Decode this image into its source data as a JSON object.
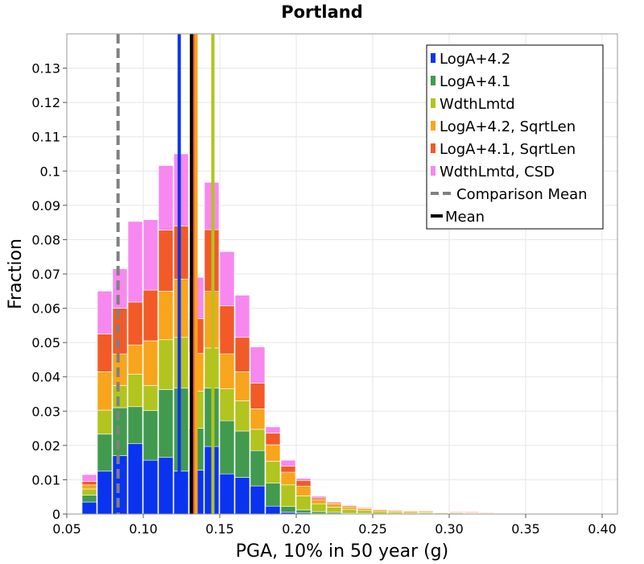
{
  "chart_data": {
    "type": "bar",
    "stacked": true,
    "title": "Portland",
    "xlabel": "PGA, 10% in 50 year (g)",
    "ylabel": "Fraction",
    "xlim": [
      0.05,
      0.41
    ],
    "ylim": [
      0,
      0.14
    ],
    "bin_width": 0.01,
    "grid": true,
    "legend_position": "top-right",
    "xticks": [
      "0.05",
      "0.10",
      "0.15",
      "0.20",
      "0.25",
      "0.30",
      "0.35",
      "0.40"
    ],
    "xtick_values": [
      0.05,
      0.1,
      0.15,
      0.2,
      0.25,
      0.3,
      0.35,
      0.4
    ],
    "yticks": [
      "0",
      "0.01",
      "0.02",
      "0.03",
      "0.04",
      "0.05",
      "0.06",
      "0.07",
      "0.08",
      "0.09",
      "0.1",
      "0.11",
      "0.12",
      "0.13"
    ],
    "ytick_values": [
      0,
      0.01,
      0.02,
      0.03,
      0.04,
      0.05,
      0.06,
      0.07,
      0.08,
      0.09,
      0.1,
      0.11,
      0.12,
      0.13
    ],
    "bin_starts": [
      0.06,
      0.07,
      0.08,
      0.09,
      0.1,
      0.11,
      0.12,
      0.13,
      0.14,
      0.15,
      0.16,
      0.17,
      0.18,
      0.19,
      0.2,
      0.21,
      0.22,
      0.23,
      0.24,
      0.25,
      0.26,
      0.27,
      0.28,
      0.29,
      0.3,
      0.31,
      0.32,
      0.33,
      0.34,
      0.35,
      0.36,
      0.37,
      0.38,
      0.39
    ],
    "series": [
      {
        "name": "LogA+4.2",
        "color": "#0a33f0",
        "values": [
          0.0035,
          0.0125,
          0.017,
          0.0205,
          0.0157,
          0.0165,
          0.0125,
          0.0128,
          0.0197,
          0.0117,
          0.0107,
          0.0082,
          0.0023,
          0.0005,
          0.0003,
          0.0001,
          0.0001,
          0,
          0,
          0,
          0,
          0,
          0,
          0,
          0,
          0,
          0,
          0,
          0,
          0,
          0,
          0,
          0,
          0
        ]
      },
      {
        "name": "LogA+4.1",
        "color": "#429a4f",
        "values": [
          0.002,
          0.0108,
          0.014,
          0.0108,
          0.0145,
          0.0198,
          0.0242,
          0.0122,
          0.017,
          0.0155,
          0.0135,
          0.0103,
          0.0067,
          0.0017,
          0.0009,
          0.0006,
          0.0004,
          0.0002,
          0.0002,
          0.0001,
          0.0001,
          0.0001,
          0.0001,
          0.0001,
          0.0001,
          0,
          0,
          0,
          0,
          0,
          0,
          0,
          0,
          0
        ]
      },
      {
        "name": "WdthLmtd",
        "color": "#b2c41e",
        "values": [
          0.0018,
          0.007,
          0.0065,
          0.0095,
          0.0073,
          0.0145,
          0.0148,
          0.0108,
          0.0117,
          0.0093,
          0.0088,
          0.0062,
          0.0064,
          0.0063,
          0.0041,
          0.0023,
          0.0015,
          0.0012,
          0.0008,
          0.0006,
          0.0004,
          0.0003,
          0.0003,
          0.0002,
          0.0002,
          0.0002,
          0.0002,
          0.0001,
          0.0001,
          0.0001,
          0.0001,
          0.0001,
          0.0002,
          0.0002
        ]
      },
      {
        "name": "LogA+4.2, SqrtLen",
        "color": "#f8a51d",
        "values": [
          0.0012,
          0.0112,
          0.0092,
          0.0085,
          0.013,
          0.0142,
          0.017,
          0.011,
          0.0165,
          0.0102,
          0.0085,
          0.006,
          0.0048,
          0.0037,
          0.0028,
          0.0012,
          0.001,
          0.0007,
          0.0006,
          0.0005,
          0.0004,
          0.0004,
          0.0003,
          0.0002,
          0.0002,
          0.0002,
          0.0002,
          0.0001,
          0.0001,
          0.0001,
          0.0001,
          0.0001,
          0.0001,
          0.0001
        ]
      },
      {
        "name": "LogA+4.1, SqrtLen",
        "color": "#f25a28",
        "values": [
          0.001,
          0.011,
          0.0133,
          0.0125,
          0.0148,
          0.0178,
          0.0155,
          0.0102,
          0.018,
          0.014,
          0.01,
          0.0075,
          0.0034,
          0.0018,
          0.0017,
          0.0005,
          0.0003,
          0.0003,
          0.0002,
          0.0002,
          0.0002,
          0.0001,
          0.0002,
          0.0001,
          0.0002,
          0.0002,
          0.0001,
          0.0001,
          0.0001,
          0,
          0,
          0,
          0,
          0
        ]
      },
      {
        "name": "WdthLmtd, CSD",
        "color": "#f788f0",
        "values": [
          0.002,
          0.0125,
          0.0115,
          0.0235,
          0.0205,
          0.0188,
          0.021,
          0.012,
          0.0138,
          0.0158,
          0.0123,
          0.0105,
          0.0018,
          0.0017,
          0.0006,
          0.0005,
          0.0003,
          0.0002,
          0.0002,
          0.0001,
          0.0001,
          0.0001,
          0,
          0.0001,
          0,
          0,
          0,
          0,
          0,
          0,
          0,
          0,
          0,
          0
        ]
      }
    ],
    "mean_lines": [
      {
        "name": "LogA+4.2",
        "color": "#0a33f0",
        "x": 0.1235
      },
      {
        "name": "LogA+4.1",
        "color": "#429a4f",
        "x": 0.1335
      },
      {
        "name": "WdthLmtd",
        "color": "#b2c41e",
        "x": 0.1455
      },
      {
        "name": "LogA+4.2, SqrtLen",
        "color": "#f8a51d",
        "x": 0.1345
      },
      {
        "name": "LogA+4.1, SqrtLen",
        "color": "#f25a28",
        "x": 0.1325
      },
      {
        "name": "WdthLmtd, CSD",
        "color": "#f788f0",
        "x": 0.1315
      },
      {
        "name": "Mean",
        "color": "#000000",
        "x": 0.1315
      }
    ],
    "comparison_mean": {
      "name": "Comparison Mean",
      "color": "#808080",
      "x": 0.0835
    },
    "legend": [
      {
        "label": "LogA+4.2",
        "color": "#0a33f0",
        "kind": "box"
      },
      {
        "label": "LogA+4.1",
        "color": "#429a4f",
        "kind": "box"
      },
      {
        "label": "WdthLmtd",
        "color": "#b2c41e",
        "kind": "box"
      },
      {
        "label": "LogA+4.2, SqrtLen",
        "color": "#f8a51d",
        "kind": "box"
      },
      {
        "label": "LogA+4.1, SqrtLen",
        "color": "#f25a28",
        "kind": "box"
      },
      {
        "label": "WdthLmtd, CSD",
        "color": "#f788f0",
        "kind": "box"
      },
      {
        "label": "Comparison Mean",
        "color": "#808080",
        "kind": "dash"
      },
      {
        "label": "Mean",
        "color": "#000000",
        "kind": "line"
      }
    ]
  }
}
